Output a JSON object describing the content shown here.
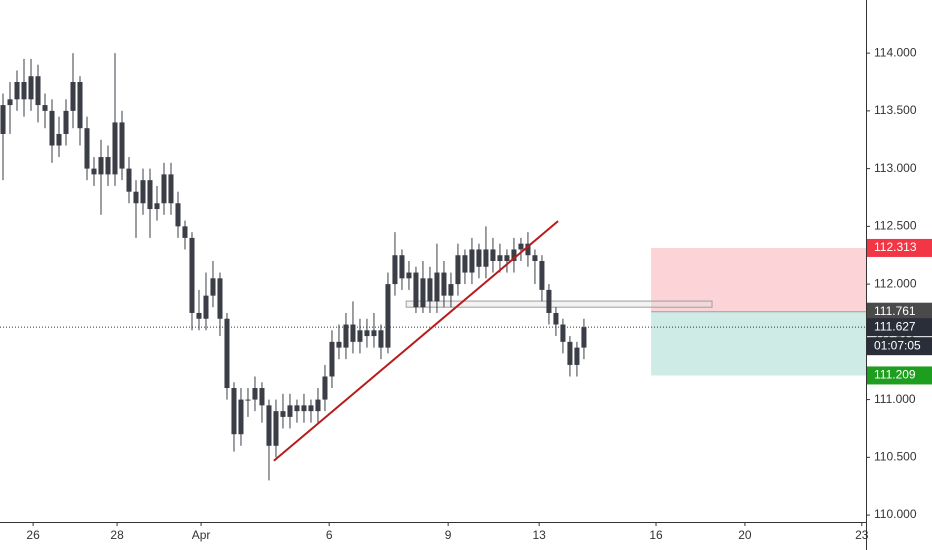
{
  "chart_data": {
    "type": "candlestick",
    "color": "#3b3e46",
    "open": [
      113.3,
      113.55,
      113.6,
      113.75,
      113.6,
      113.8,
      113.55,
      113.5,
      113.2,
      113.3,
      113.5,
      113.75,
      113.35,
      113.0,
      112.95,
      113.1,
      112.95,
      113.4,
      113.0,
      112.8,
      112.7,
      112.9,
      112.65,
      112.7,
      112.95,
      112.7,
      112.5,
      112.4,
      111.75,
      111.7,
      111.9,
      112.05,
      111.7,
      111.1,
      110.7,
      111.0,
      111.0,
      111.1,
      110.95,
      110.6,
      110.9,
      110.85,
      110.95,
      110.9,
      110.95,
      110.9,
      111.0,
      111.2,
      111.5,
      111.45,
      111.65,
      111.5,
      111.6,
      111.55,
      111.6,
      111.45,
      112.0,
      112.25,
      112.05,
      112.1,
      111.8,
      112.05,
      111.85,
      112.1,
      111.9,
      112.0,
      112.25,
      112.1,
      112.3,
      112.15,
      112.3,
      112.2,
      112.25,
      112.2,
      112.3,
      112.35,
      112.25,
      112.2,
      111.95,
      111.75,
      111.65,
      111.5,
      111.3,
      111.45
    ],
    "high": [
      113.65,
      113.75,
      113.85,
      113.95,
      113.95,
      113.9,
      113.65,
      113.6,
      113.45,
      113.6,
      114.0,
      113.8,
      113.45,
      113.1,
      113.25,
      113.2,
      114.0,
      113.5,
      113.1,
      112.9,
      113.0,
      113.0,
      112.85,
      113.05,
      113.05,
      112.8,
      112.55,
      112.45,
      111.95,
      112.1,
      112.2,
      112.1,
      111.75,
      111.15,
      111.1,
      111.1,
      111.2,
      111.15,
      111.0,
      111.0,
      111.05,
      111.05,
      111.0,
      111.05,
      111.0,
      111.1,
      111.3,
      111.6,
      111.65,
      111.75,
      111.85,
      111.7,
      111.7,
      111.75,
      111.65,
      112.1,
      112.45,
      112.3,
      112.2,
      112.15,
      112.2,
      112.15,
      112.35,
      112.2,
      112.1,
      112.35,
      112.3,
      112.4,
      112.35,
      112.5,
      112.4,
      112.35,
      112.3,
      112.4,
      112.4,
      112.45,
      112.3,
      112.25,
      112.0,
      111.8,
      111.7,
      111.55,
      111.5,
      111.7
    ],
    "low": [
      112.9,
      113.3,
      113.5,
      113.45,
      113.5,
      113.4,
      113.35,
      113.05,
      113.1,
      113.2,
      113.35,
      113.2,
      112.9,
      112.85,
      112.6,
      112.85,
      112.85,
      112.9,
      112.7,
      112.4,
      112.6,
      112.4,
      112.55,
      112.6,
      112.6,
      112.4,
      112.3,
      111.6,
      111.6,
      111.6,
      111.8,
      111.55,
      111.0,
      110.55,
      110.6,
      110.85,
      110.9,
      110.8,
      110.3,
      110.5,
      110.75,
      110.75,
      110.8,
      110.8,
      110.8,
      110.8,
      110.9,
      111.1,
      111.35,
      111.35,
      111.4,
      111.4,
      111.45,
      111.45,
      111.35,
      111.4,
      111.9,
      111.95,
      111.95,
      111.75,
      111.75,
      111.75,
      111.75,
      111.8,
      111.8,
      111.9,
      112.0,
      112.0,
      112.05,
      112.05,
      112.1,
      112.1,
      112.1,
      112.1,
      112.2,
      112.15,
      112.0,
      111.85,
      111.65,
      111.55,
      111.4,
      111.2,
      111.2,
      111.35
    ],
    "close": [
      113.55,
      113.6,
      113.75,
      113.6,
      113.8,
      113.55,
      113.5,
      113.2,
      113.3,
      113.5,
      113.75,
      113.35,
      113.0,
      112.95,
      113.1,
      112.95,
      113.4,
      113.0,
      112.8,
      112.7,
      112.9,
      112.65,
      112.7,
      112.95,
      112.7,
      112.5,
      112.4,
      111.75,
      111.7,
      111.9,
      112.05,
      111.7,
      111.1,
      110.7,
      111.0,
      111.0,
      111.1,
      110.95,
      110.6,
      110.9,
      110.85,
      110.95,
      110.9,
      110.95,
      110.9,
      111.0,
      111.2,
      111.5,
      111.45,
      111.65,
      111.5,
      111.6,
      111.55,
      111.6,
      111.45,
      112.0,
      112.25,
      112.05,
      112.1,
      111.8,
      112.05,
      111.85,
      112.1,
      111.9,
      112.0,
      112.25,
      112.1,
      112.3,
      112.15,
      112.3,
      112.2,
      112.25,
      112.2,
      112.3,
      112.35,
      112.25,
      112.2,
      111.95,
      111.75,
      111.65,
      111.5,
      111.3,
      111.45,
      111.627
    ],
    "xlim": [
      -0.43,
      123.3
    ],
    "xticks": [
      {
        "value": 4.3,
        "label": "26"
      },
      {
        "value": 16.3,
        "label": "28"
      },
      {
        "value": 28.3,
        "label": "Apr"
      },
      {
        "value": 46.6,
        "label": "6"
      },
      {
        "value": 63.6,
        "label": "9"
      },
      {
        "value": 76.6,
        "label": "13"
      },
      {
        "value": 93.3,
        "label": "16"
      },
      {
        "value": 106,
        "label": "20"
      },
      {
        "value": 122.7,
        "label": "23"
      }
    ],
    "ylim": [
      109.94,
      114.46
    ],
    "yticks": [
      {
        "value": 110,
        "label": "110.000"
      },
      {
        "value": 110.5,
        "label": "110.500"
      },
      {
        "value": 111,
        "label": "111.000"
      },
      {
        "value": 111.5,
        "label": "111.500"
      },
      {
        "value": 112,
        "label": "112.000"
      },
      {
        "value": 112.5,
        "label": "112.500"
      },
      {
        "value": 113,
        "label": "113.000"
      },
      {
        "value": 113.5,
        "label": "113.500"
      },
      {
        "value": 114,
        "label": "114.000"
      }
    ],
    "last_price": 111.627,
    "countdown": "01:07:05",
    "trendline": {
      "x": [
        38.7,
        79.3
      ],
      "y": [
        110.47,
        112.545
      ],
      "color": "#b71c1c"
    },
    "zone": {
      "x": [
        57.6,
        101.3
      ],
      "y": [
        111.8,
        111.853
      ]
    },
    "position": {
      "x_start": 92.6,
      "entry": 111.761,
      "stop": 112.313,
      "target": 111.209,
      "stop_color": "#f23645",
      "target_color": "#089981"
    }
  }
}
